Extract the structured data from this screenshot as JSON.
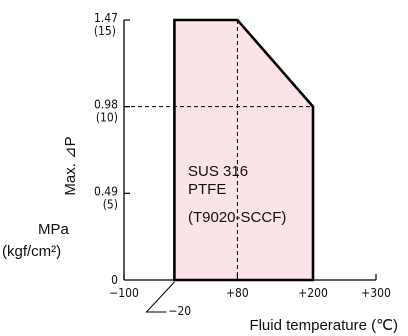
{
  "chart_data": {
    "type": "area",
    "title": "",
    "xlabel": "Fluid temperature (℃)",
    "ylabel": "Max. ⊿P",
    "unit_label": "MPa",
    "unit_label_alt": "(kgf/cm²)",
    "xlim": [
      -100,
      300
    ],
    "ylim": [
      0,
      1.47
    ],
    "x_ticks": [
      "−100",
      "+80",
      "+200",
      "+300"
    ],
    "x_tick_values": [
      -100,
      80,
      200,
      300
    ],
    "x_special_tick": "−20",
    "x_special_tick_value": -20,
    "y_ticks": [
      {
        "value": 0,
        "label": "0",
        "sub": ""
      },
      {
        "value": 0.49,
        "label": "0.49",
        "sub": "(5)"
      },
      {
        "value": 0.98,
        "label": "0.98",
        "sub": "(10)"
      },
      {
        "value": 1.47,
        "label": "1.47",
        "sub": "(15)"
      }
    ],
    "region": {
      "points": [
        [
          -20,
          0
        ],
        [
          -20,
          1.47
        ],
        [
          80,
          1.47
        ],
        [
          200,
          0.98
        ],
        [
          200,
          0
        ]
      ],
      "fill": "#fbe3e8",
      "stroke": "#000000"
    },
    "guides": [
      {
        "x": 80,
        "y": 1.47
      },
      {
        "x": 200,
        "y": 0.98
      }
    ],
    "annotations": [
      "SUS 316",
      "PTFE",
      "(T9020-SCCF)"
    ]
  }
}
